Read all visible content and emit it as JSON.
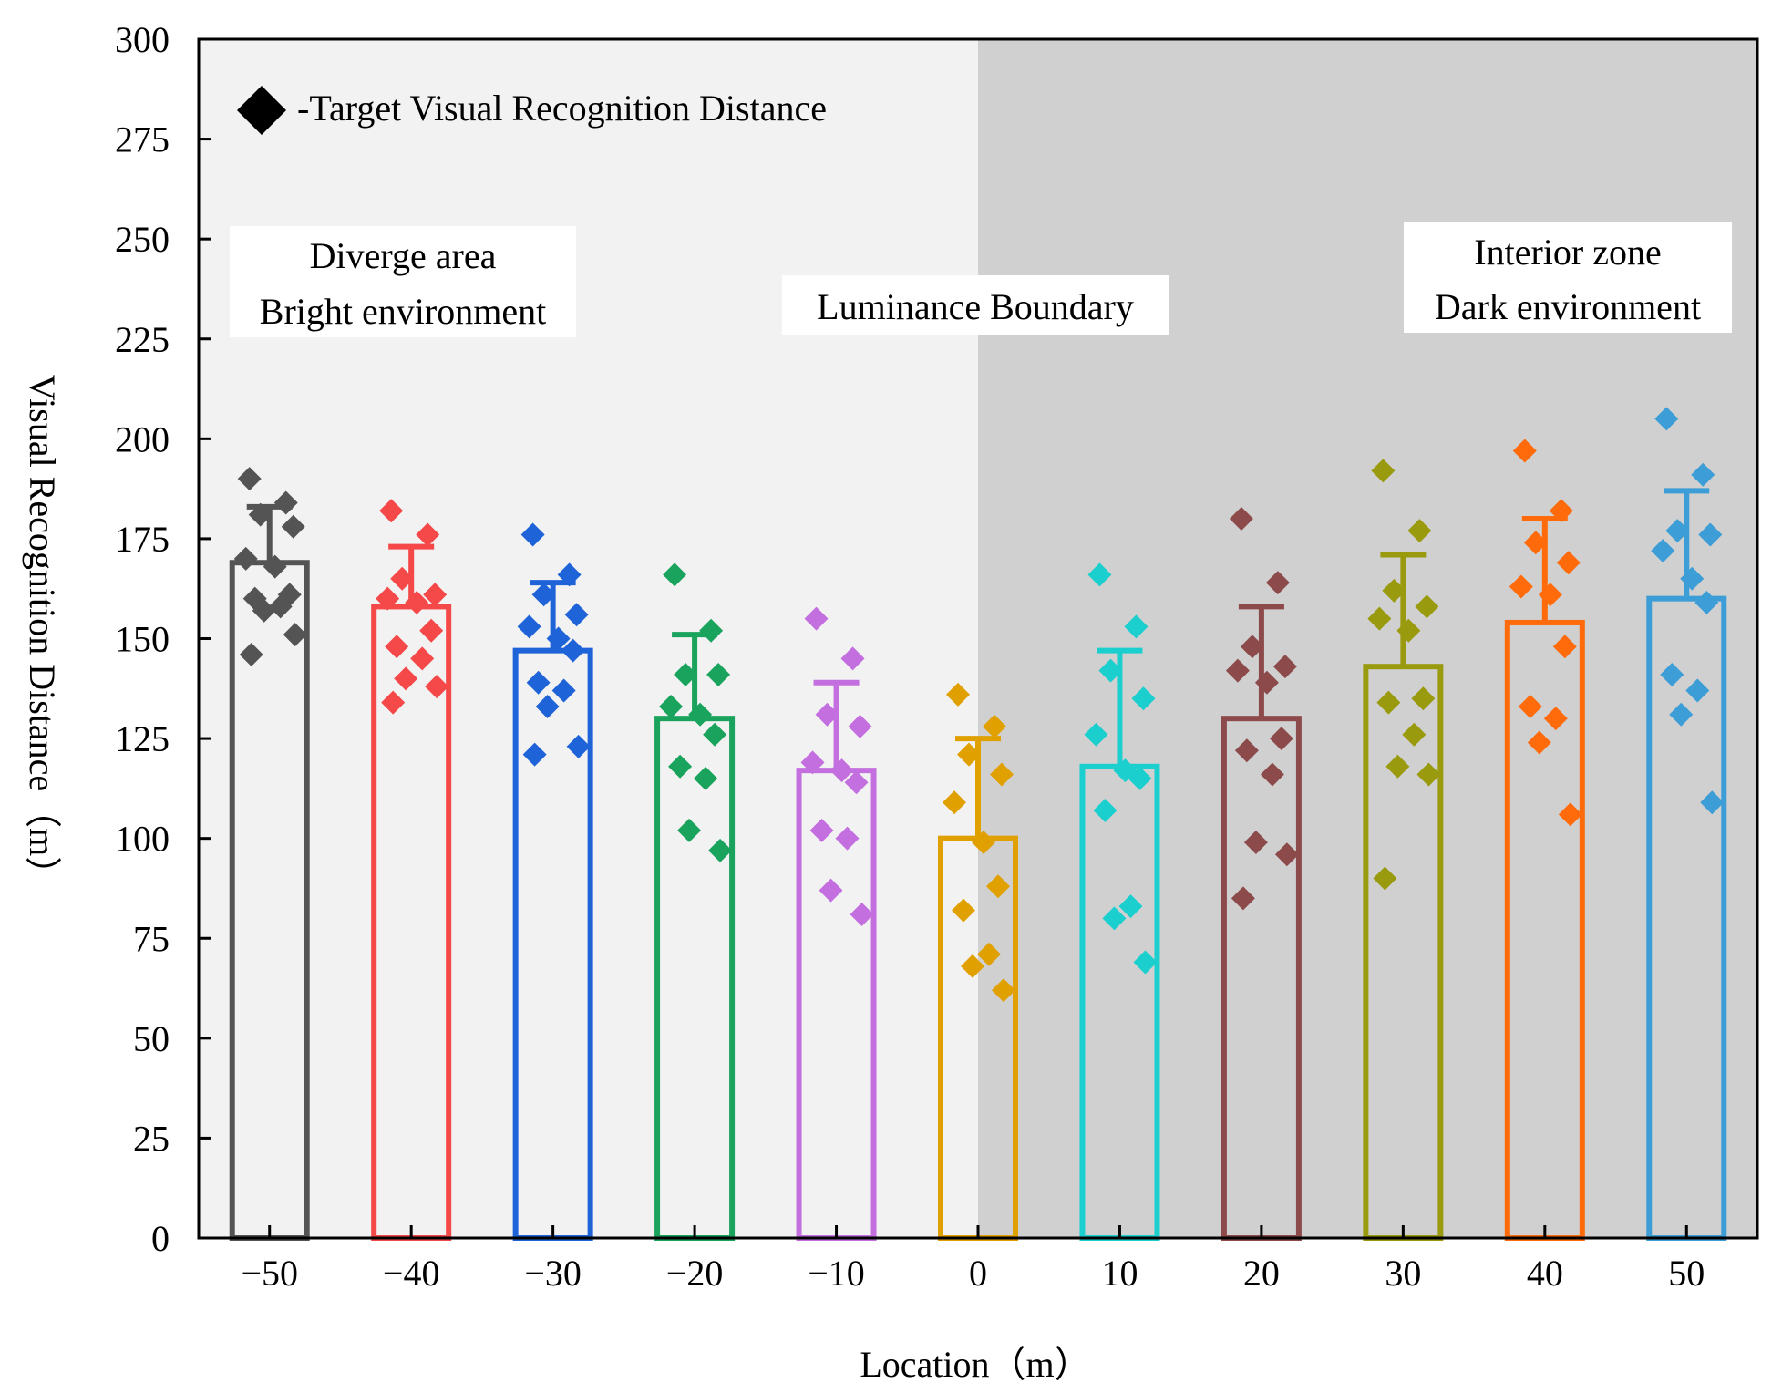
{
  "chart_data": {
    "type": "bar",
    "xlabel": "Location（m）",
    "ylabel": "Visual Recognition Distance（m）",
    "xlim": [
      -55,
      55
    ],
    "ylim": [
      0,
      300
    ],
    "yticks": [
      0,
      25,
      50,
      75,
      100,
      125,
      150,
      175,
      200,
      225,
      250,
      275,
      300
    ],
    "bright_region": [
      -55,
      0
    ],
    "dark_region": [
      0,
      55
    ],
    "region_colors": {
      "bright": "#f2f2f2",
      "dark": "#d0d0d0"
    },
    "legend": {
      "label": "-Target Visual Recognition Distance",
      "position": "top-left"
    },
    "annotations": [
      {
        "name": "diverge-area-annotation",
        "lines": [
          "Diverge area",
          "Bright environment"
        ]
      },
      {
        "name": "luminance-boundary-annotation",
        "lines": [
          "Luminance Boundary"
        ]
      },
      {
        "name": "interior-zone-annotation",
        "lines": [
          "Interior zone",
          "Dark environment"
        ]
      }
    ],
    "series": [
      {
        "location": -50,
        "tick_label": "−50",
        "mean": 169,
        "error": 14,
        "color": "#545454",
        "points": [
          190,
          184,
          181,
          178,
          170,
          168,
          161,
          160,
          158,
          157,
          151,
          146
        ]
      },
      {
        "location": -40,
        "tick_label": "−40",
        "mean": 158,
        "error": 15,
        "color": "#f54848",
        "points": [
          182,
          176,
          165,
          161,
          160,
          159,
          152,
          148,
          145,
          140,
          138,
          134
        ]
      },
      {
        "location": -30,
        "tick_label": "−30",
        "mean": 147,
        "error": 17,
        "color": "#1f63d8",
        "points": [
          176,
          166,
          161,
          156,
          153,
          150,
          147,
          139,
          137,
          133,
          123,
          121
        ]
      },
      {
        "location": -20,
        "tick_label": "−20",
        "mean": 130,
        "error": 21,
        "color": "#19a35c",
        "points": [
          166,
          152,
          141,
          141,
          133,
          131,
          126,
          118,
          115,
          102,
          97
        ]
      },
      {
        "location": -10,
        "tick_label": "−10",
        "mean": 117,
        "error": 22,
        "color": "#c46fe0",
        "points": [
          155,
          145,
          131,
          128,
          119,
          117,
          114,
          102,
          100,
          87,
          81
        ]
      },
      {
        "location": 0,
        "tick_label": "0",
        "mean": 100,
        "error": 25,
        "color": "#e0a000",
        "points": [
          136,
          128,
          121,
          116,
          109,
          99,
          88,
          82,
          71,
          68,
          62
        ]
      },
      {
        "location": 10,
        "tick_label": "10",
        "mean": 118,
        "error": 29,
        "color": "#1ccfcf",
        "points": [
          166,
          153,
          142,
          135,
          126,
          117,
          115,
          107,
          83,
          80,
          69
        ]
      },
      {
        "location": 20,
        "tick_label": "20",
        "mean": 130,
        "error": 28,
        "color": "#8c4a4a",
        "points": [
          180,
          164,
          148,
          143,
          142,
          139,
          125,
          122,
          116,
          99,
          96,
          85
        ]
      },
      {
        "location": 30,
        "tick_label": "30",
        "mean": 143,
        "error": 28,
        "color": "#9a9a0e",
        "points": [
          192,
          177,
          162,
          158,
          155,
          152,
          135,
          134,
          126,
          118,
          116,
          90
        ]
      },
      {
        "location": 40,
        "tick_label": "40",
        "mean": 154,
        "error": 26,
        "color": "#ff6a0a",
        "points": [
          197,
          182,
          174,
          169,
          163,
          161,
          148,
          133,
          130,
          124,
          106
        ]
      },
      {
        "location": 50,
        "tick_label": "50",
        "mean": 160,
        "error": 27,
        "color": "#3d9dd6",
        "points": [
          205,
          191,
          177,
          176,
          172,
          165,
          159,
          141,
          137,
          131,
          109
        ]
      }
    ]
  }
}
